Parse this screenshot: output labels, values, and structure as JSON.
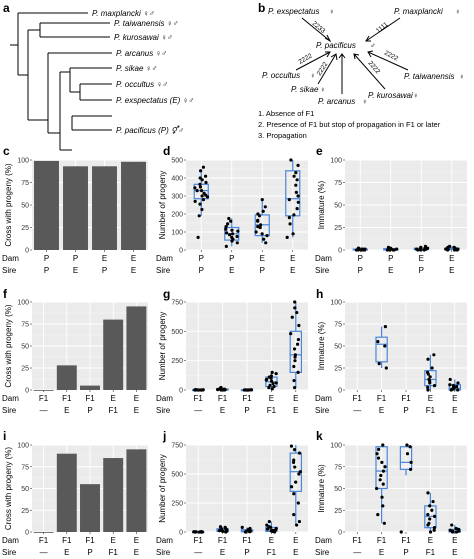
{
  "colors": {
    "panel_bg": "#ebebeb",
    "bar": "#595959",
    "box": "#4a86d9",
    "point": "#000000"
  },
  "panel_a": {
    "label": "a",
    "tips": [
      {
        "text": "P. maxplancki ♀♂"
      },
      {
        "text": "P. taiwanensis ♀♂"
      },
      {
        "text": "P. kurosawai ♀♂"
      },
      {
        "text": "P. arcanus ♀♂"
      },
      {
        "text": "P. sikae ♀♂"
      },
      {
        "text": "P. occultus ♀♂"
      },
      {
        "text": "P. exspectatus (E) ♀♂"
      },
      {
        "text": "P. pacificus (P) ⚥♂"
      }
    ]
  },
  "panel_b": {
    "label": "b",
    "center": {
      "name": "P. pacificus",
      "sex": "♂"
    },
    "nodes": [
      {
        "name": "P. exspectatus",
        "sex": "♀",
        "code": "2233"
      },
      {
        "name": "P. maxplancki",
        "sex": "♀",
        "code": "1111"
      },
      {
        "name": "P. occultus",
        "sex": "♀",
        "code": "2222"
      },
      {
        "name": "P. taiwanensis",
        "sex": "♀",
        "code": "2222"
      },
      {
        "name": "P. sikae",
        "sex": "♀",
        "code": "2222"
      },
      {
        "name": "P. arcanus",
        "sex": "♀",
        "code": "2222"
      },
      {
        "name": "P. kurosawai",
        "sex": "♀",
        "code": "2222"
      }
    ],
    "legend": [
      "1. Absence of F1",
      "2. Presence of F1 but stop of propagation in F1 or later",
      "3. Propagation"
    ]
  },
  "row_axis": {
    "dam_label": "Dam",
    "sire_label": "Sire"
  },
  "chart_data": [
    {
      "panel": "c",
      "type": "bar",
      "ylabel": "Cross with progeny (%)",
      "ylim": [
        0,
        100
      ],
      "yticks": [
        0,
        25,
        50,
        75,
        100
      ],
      "dam": [
        "P",
        "P",
        "E",
        "E"
      ],
      "sire": [
        "P",
        "E",
        "P",
        "E"
      ],
      "values": [
        99,
        93,
        93,
        98
      ]
    },
    {
      "panel": "d",
      "type": "box",
      "ylabel": "Number of progeny",
      "ylim": [
        0,
        500
      ],
      "yticks": [
        0,
        100,
        200,
        300,
        400,
        500
      ],
      "dam": [
        "P",
        "P",
        "E",
        "E"
      ],
      "sire": [
        "P",
        "E",
        "P",
        "E"
      ],
      "boxes": [
        {
          "q1": 285,
          "med": 330,
          "q3": 365,
          "wlo": 190,
          "whi": 450
        },
        {
          "q1": 55,
          "med": 90,
          "q3": 125,
          "wlo": 20,
          "whi": 175
        },
        {
          "q1": 80,
          "med": 140,
          "q3": 195,
          "wlo": 40,
          "whi": 280
        },
        {
          "q1": 190,
          "med": 285,
          "q3": 440,
          "wlo": 70,
          "whi": 500
        }
      ],
      "points": [
        [
          330,
          390,
          305,
          345,
          280,
          460,
          410,
          225,
          365,
          315,
          295,
          255,
          350,
          400,
          270,
          190,
          330,
          440,
          375,
          70,
          300
        ],
        [
          50,
          90,
          130,
          70,
          105,
          160,
          40,
          20,
          85,
          115,
          60,
          145,
          95,
          175,
          110,
          75
        ],
        [
          100,
          140,
          190,
          215,
          80,
          240,
          165,
          60,
          40,
          125,
          280,
          160,
          200,
          90,
          130
        ],
        [
          195,
          300,
          430,
          360,
          90,
          230,
          470,
          280,
          145,
          390,
          500,
          320,
          70,
          265,
          410,
          180
        ]
      ]
    },
    {
      "panel": "e",
      "type": "box",
      "ylabel": "Immature (%)",
      "ylim": [
        0,
        100
      ],
      "yticks": [
        0,
        25,
        50,
        75,
        100
      ],
      "dam": [
        "P",
        "P",
        "E",
        "E"
      ],
      "sire": [
        "P",
        "E",
        "P",
        "E"
      ],
      "boxes": [
        {
          "q1": 0,
          "med": 0.5,
          "q3": 1,
          "wlo": 0,
          "whi": 3
        },
        {
          "q1": 0,
          "med": 0.5,
          "q3": 1.5,
          "wlo": 0,
          "whi": 3
        },
        {
          "q1": 0.5,
          "med": 1,
          "q3": 2,
          "wlo": 0,
          "whi": 4
        },
        {
          "q1": 0.5,
          "med": 1,
          "q3": 2,
          "wlo": 0,
          "whi": 4
        }
      ],
      "points": [
        [
          0,
          1,
          0,
          2,
          1,
          0,
          0,
          1,
          2,
          0,
          1,
          0
        ],
        [
          0,
          1,
          2,
          0,
          1,
          3,
          0,
          1,
          2,
          0
        ],
        [
          0,
          2,
          1,
          3,
          0,
          1,
          4,
          2,
          1,
          0,
          2
        ],
        [
          1,
          0,
          2,
          4,
          1,
          3,
          0,
          2,
          1,
          3,
          2,
          0
        ]
      ]
    },
    {
      "panel": "f",
      "type": "bar",
      "ylabel": "Cross with progeny (%)",
      "ylim": [
        0,
        100
      ],
      "yticks": [
        0,
        25,
        50,
        75,
        100
      ],
      "dam": [
        "F1",
        "F1",
        "F1",
        "E",
        "E"
      ],
      "sire": [
        "—",
        "E",
        "P",
        "F1",
        "E"
      ],
      "values": [
        0,
        28,
        5,
        80,
        95
      ]
    },
    {
      "panel": "g",
      "type": "box",
      "ylabel": "Number of progeny",
      "ylim": [
        0,
        750
      ],
      "yticks": [
        0,
        250,
        500,
        750
      ],
      "dam": [
        "F1",
        "F1",
        "F1",
        "E",
        "E"
      ],
      "sire": [
        "—",
        "E",
        "P",
        "F1",
        "E"
      ],
      "boxes": [
        {
          "q1": 0,
          "med": 0,
          "q3": 2,
          "wlo": 0,
          "whi": 5
        },
        {
          "q1": 0,
          "med": 2,
          "q3": 8,
          "wlo": 0,
          "whi": 22
        },
        {
          "q1": 0,
          "med": 0,
          "q3": 1,
          "wlo": 0,
          "whi": 3
        },
        {
          "q1": 30,
          "med": 70,
          "q3": 110,
          "wlo": 0,
          "whi": 160
        },
        {
          "q1": 150,
          "med": 300,
          "q3": 500,
          "wlo": 20,
          "whi": 750
        }
      ],
      "points": [
        [
          0,
          0,
          1,
          0,
          2,
          0,
          3,
          0,
          0,
          1
        ],
        [
          0,
          5,
          2,
          12,
          0,
          22,
          3,
          8,
          1
        ],
        [
          0,
          0,
          1,
          0,
          2,
          0,
          0,
          1
        ],
        [
          40,
          90,
          120,
          60,
          10,
          150,
          75,
          100,
          30,
          55,
          140,
          20,
          85,
          110
        ],
        [
          700,
          750,
          620,
          480,
          390,
          300,
          250,
          200,
          350,
          550,
          150,
          80,
          430,
          20,
          660,
          280
        ]
      ]
    },
    {
      "panel": "h",
      "type": "box",
      "ylabel": "Immature (%)",
      "ylim": [
        0,
        100
      ],
      "yticks": [
        0,
        25,
        50,
        75,
        100
      ],
      "dam": [
        "F1",
        "F1",
        "F1",
        "E",
        "E"
      ],
      "sire": [
        "—",
        "E",
        "P",
        "F1",
        "E"
      ],
      "boxes": [
        null,
        {
          "q1": 32,
          "med": 52,
          "q3": 60,
          "wlo": 25,
          "whi": 72
        },
        null,
        {
          "q1": 5,
          "med": 12,
          "q3": 22,
          "wlo": 0,
          "whi": 40
        },
        {
          "q1": 0,
          "med": 2,
          "q3": 6,
          "wlo": 0,
          "whi": 12
        }
      ],
      "points": [
        [],
        [
          25,
          50,
          55,
          30,
          72
        ],
        [],
        [
          0,
          8,
          12,
          20,
          35,
          5,
          15,
          25,
          40,
          10,
          18,
          3
        ],
        [
          0,
          2,
          5,
          8,
          12,
          1,
          3,
          6,
          0,
          4
        ]
      ]
    },
    {
      "panel": "i",
      "type": "bar",
      "ylabel": "Cross with progeny (%)",
      "ylim": [
        0,
        100
      ],
      "yticks": [
        0,
        25,
        50,
        75,
        100
      ],
      "dam": [
        "F1",
        "F1",
        "F1",
        "E",
        "E"
      ],
      "sire": [
        "—",
        "E",
        "P",
        "F1",
        "E"
      ],
      "values": [
        0,
        90,
        55,
        85,
        95
      ]
    },
    {
      "panel": "j",
      "type": "box",
      "ylabel": "Number of progeny",
      "ylim": [
        0,
        750
      ],
      "yticks": [
        0,
        250,
        500,
        750
      ],
      "dam": [
        "F1",
        "F1",
        "F1",
        "E",
        "E"
      ],
      "sire": [
        "—",
        "E",
        "P",
        "F1",
        "E"
      ],
      "boxes": [
        {
          "q1": 0,
          "med": 0,
          "q3": 2,
          "wlo": 0,
          "whi": 6
        },
        {
          "q1": 5,
          "med": 15,
          "q3": 28,
          "wlo": 0,
          "whi": 45
        },
        {
          "q1": 2,
          "med": 8,
          "q3": 20,
          "wlo": 0,
          "whi": 40
        },
        {
          "q1": 5,
          "med": 20,
          "q3": 40,
          "wlo": 0,
          "whi": 90
        },
        {
          "q1": 350,
          "med": 520,
          "q3": 680,
          "wlo": 60,
          "whi": 750
        }
      ],
      "points": [
        [
          0,
          0,
          1,
          2,
          0,
          0,
          3,
          0,
          1,
          0
        ],
        [
          10,
          25,
          5,
          40,
          15,
          0,
          30,
          20,
          45,
          8,
          18,
          12
        ],
        [
          0,
          5,
          20,
          40,
          10,
          2,
          15,
          30,
          8
        ],
        [
          10,
          25,
          5,
          90,
          40,
          15,
          60,
          0,
          30,
          20,
          45,
          12
        ],
        [
          740,
          710,
          680,
          600,
          560,
          520,
          500,
          430,
          390,
          330,
          250,
          150,
          90,
          60,
          620
        ]
      ]
    },
    {
      "panel": "k",
      "type": "box",
      "ylabel": "Immature (%)",
      "ylim": [
        0,
        100
      ],
      "yticks": [
        0,
        25,
        50,
        75,
        100
      ],
      "dam": [
        "F1",
        "F1",
        "F1",
        "E",
        "E"
      ],
      "sire": [
        "—",
        "E",
        "P",
        "F1",
        "E"
      ],
      "boxes": [
        null,
        {
          "q1": 50,
          "med": 70,
          "q3": 98,
          "wlo": 10,
          "whi": 100
        },
        {
          "q1": 72,
          "med": 80,
          "q3": 98,
          "wlo": 65,
          "whi": 100
        },
        {
          "q1": 5,
          "med": 18,
          "q3": 30,
          "wlo": 0,
          "whi": 45
        },
        {
          "q1": 0,
          "med": 1,
          "q3": 3,
          "wlo": 0,
          "whi": 8
        }
      ],
      "points": [
        [],
        [
          100,
          95,
          80,
          75,
          70,
          60,
          55,
          50,
          40,
          30,
          20,
          10,
          65,
          85,
          90
        ],
        [
          100,
          98,
          80,
          72,
          0,
          90
        ],
        [
          0,
          5,
          10,
          15,
          20,
          25,
          30,
          45,
          35,
          8,
          18,
          2
        ],
        [
          0,
          1,
          2,
          3,
          8,
          0,
          1,
          4
        ]
      ]
    }
  ]
}
